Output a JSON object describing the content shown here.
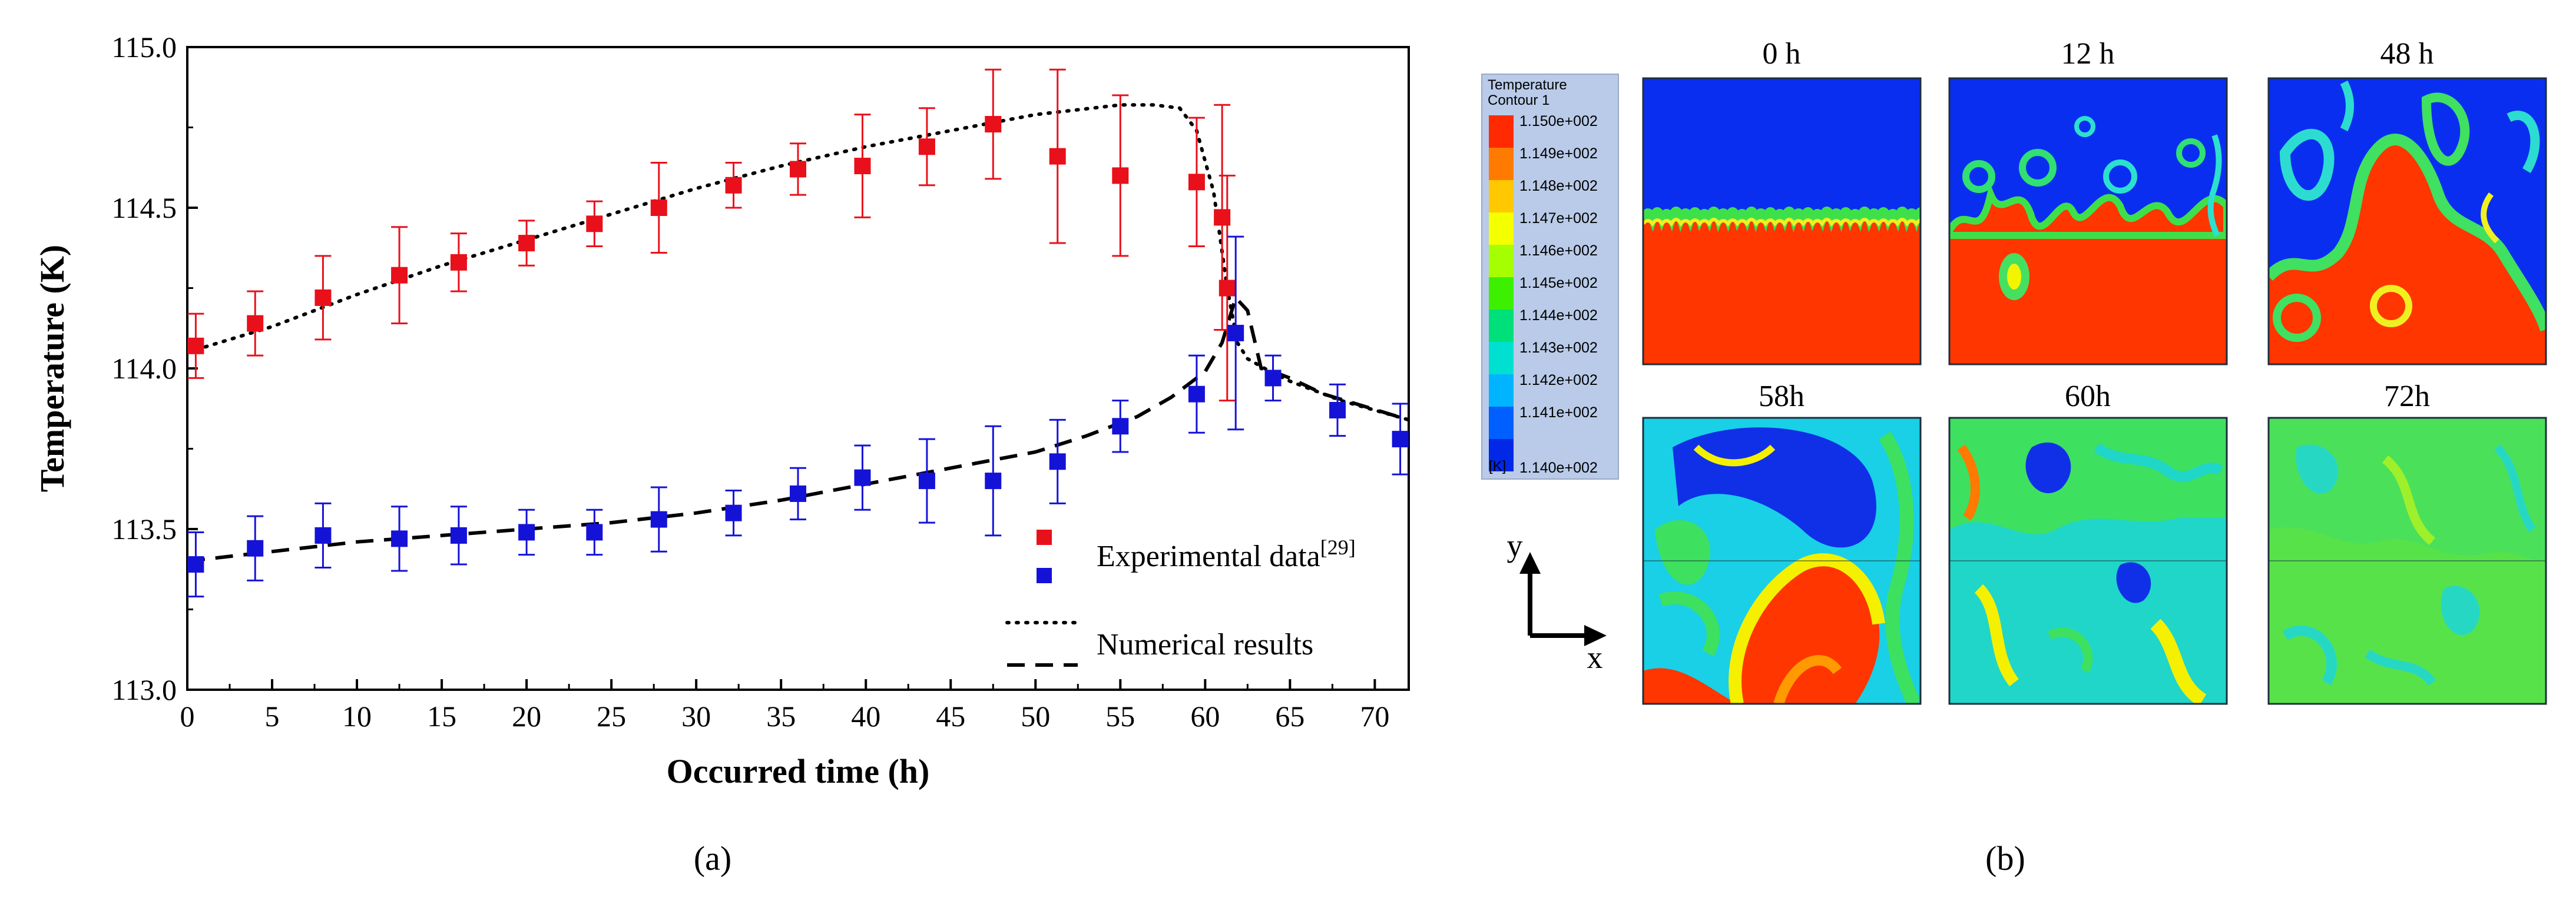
{
  "panel_a": {
    "label": "(a)"
  },
  "panel_b": {
    "label": "(b)",
    "legend": {
      "title_line1": "Temperature",
      "title_line2": "Contour 1",
      "unit": "[K]",
      "levels": [
        "1.150e+002",
        "1.149e+002",
        "1.148e+002",
        "1.147e+002",
        "1.146e+002",
        "1.145e+002",
        "1.144e+002",
        "1.143e+002",
        "1.142e+002",
        "1.141e+002",
        "1.140e+002"
      ],
      "colors": [
        "#ff2a00",
        "#ff7a00",
        "#ffc800",
        "#f4ff00",
        "#a6ff00",
        "#3cf000",
        "#00e07a",
        "#00e0d0",
        "#00b4ff",
        "#0060ff",
        "#0028e6"
      ]
    },
    "contours": [
      {
        "label": "0 h"
      },
      {
        "label": "12 h"
      },
      {
        "label": "48 h"
      },
      {
        "label": "58h"
      },
      {
        "label": "60h"
      },
      {
        "label": "72h"
      }
    ],
    "axes": {
      "x": "x",
      "y": "y"
    }
  },
  "chart_data": {
    "type": "scatter",
    "title": "",
    "xlabel": "Occurred time (h)",
    "ylabel": "Temperature (K)",
    "xlim": [
      0,
      72
    ],
    "ylim": [
      113.0,
      115.0
    ],
    "xticks": [
      0,
      5,
      10,
      15,
      20,
      25,
      30,
      35,
      40,
      45,
      50,
      55,
      60,
      65,
      70
    ],
    "yticks": [
      113.0,
      113.5,
      114.0,
      114.5,
      115.0
    ],
    "ytick_labels": [
      "113.0",
      "113.5",
      "114.0",
      "114.5",
      "115.0"
    ],
    "legend": {
      "experimental_label": "Experimental data",
      "experimental_ref": "[29]",
      "numerical_label": "Numerical results",
      "placement": "bottom-right"
    },
    "series": [
      {
        "name": "Experimental data (red)",
        "color": "#e8101a",
        "x": [
          0.5,
          4,
          8,
          12.5,
          16,
          20,
          24,
          27.8,
          32.2,
          36,
          39.8,
          43.6,
          47.5,
          51.3,
          55,
          59.5,
          61,
          61.3
        ],
        "y": [
          114.07,
          114.14,
          114.22,
          114.29,
          114.33,
          114.39,
          114.45,
          114.5,
          114.57,
          114.62,
          114.63,
          114.69,
          114.76,
          114.66,
          114.6,
          114.58,
          114.47,
          114.25
        ],
        "yerr": [
          0.1,
          0.1,
          0.13,
          0.15,
          0.09,
          0.07,
          0.07,
          0.14,
          0.07,
          0.08,
          0.16,
          0.12,
          0.17,
          0.27,
          0.25,
          0.2,
          0.35,
          0.35
        ]
      },
      {
        "name": "Experimental data (blue)",
        "color": "#1512d8",
        "x": [
          0.5,
          4,
          8,
          12.5,
          16,
          20,
          24,
          27.8,
          32.2,
          36,
          39.8,
          43.6,
          47.5,
          51.3,
          55,
          59.5,
          61.8,
          64,
          67.8,
          71.5
        ],
        "y": [
          113.39,
          113.44,
          113.48,
          113.47,
          113.48,
          113.49,
          113.49,
          113.53,
          113.55,
          113.61,
          113.66,
          113.65,
          113.65,
          113.71,
          113.82,
          113.92,
          114.11,
          113.97,
          113.87,
          113.78
        ],
        "yerr": [
          0.1,
          0.1,
          0.1,
          0.1,
          0.09,
          0.07,
          0.07,
          0.1,
          0.07,
          0.08,
          0.1,
          0.13,
          0.17,
          0.13,
          0.08,
          0.12,
          0.3,
          0.07,
          0.08,
          0.11
        ]
      },
      {
        "name": "Numerical results (dotted)",
        "style": "dotted",
        "x": [
          0,
          5,
          10,
          15,
          20,
          25,
          30,
          35,
          40,
          45,
          50,
          55,
          57,
          58.5,
          59.5,
          60.5,
          61.3,
          61.9,
          62.5,
          63.5,
          65,
          68,
          72
        ],
        "y": [
          114.05,
          114.13,
          114.23,
          114.32,
          114.4,
          114.48,
          114.56,
          114.63,
          114.69,
          114.74,
          114.79,
          114.82,
          114.82,
          114.81,
          114.74,
          114.55,
          114.25,
          114.08,
          114.03,
          114.0,
          113.96,
          113.9,
          113.84
        ]
      },
      {
        "name": "Numerical results (dashed)",
        "style": "dashed",
        "x": [
          0,
          5,
          10,
          15,
          20,
          25,
          30,
          35,
          40,
          45,
          50,
          53,
          56,
          58,
          60,
          61,
          61.8,
          62.5,
          63.3,
          64,
          65,
          67,
          72
        ],
        "y": [
          113.4,
          113.43,
          113.46,
          113.48,
          113.5,
          113.52,
          113.55,
          113.59,
          113.64,
          113.69,
          113.74,
          113.79,
          113.85,
          113.91,
          113.99,
          114.08,
          114.22,
          114.18,
          114.0,
          113.99,
          113.97,
          113.92,
          113.84
        ]
      }
    ]
  }
}
